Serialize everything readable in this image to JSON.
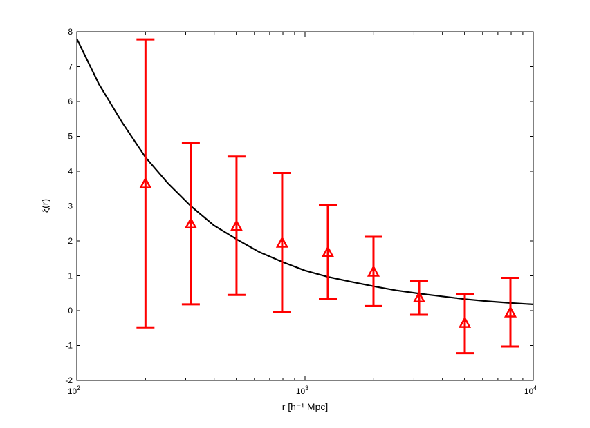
{
  "chart_data": {
    "type": "scatter",
    "x_scale": "log",
    "xlim": [
      100,
      10000
    ],
    "ylim": [
      -2,
      8
    ],
    "grid": false,
    "xlabel": "r  [h⁻¹ Mpc]",
    "ylabel": "ξ(r)",
    "x_ticks": [
      {
        "value": 100,
        "base": "10",
        "exp": "2"
      },
      {
        "value": 1000,
        "base": "10",
        "exp": "3"
      },
      {
        "value": 10000,
        "base": "10",
        "exp": "4"
      }
    ],
    "y_ticks": [
      -2,
      -1,
      0,
      1,
      2,
      3,
      4,
      5,
      6,
      7,
      8
    ],
    "series": [
      {
        "kind": "errorbar",
        "marker": "triangle",
        "color": "#ff0000",
        "x": [
          200,
          316,
          501,
          794,
          1259,
          1995,
          3162,
          5012,
          7943
        ],
        "y": [
          3.65,
          2.5,
          2.43,
          1.95,
          1.68,
          1.12,
          0.38,
          -0.35,
          -0.05
        ],
        "y_low": [
          -0.48,
          0.18,
          0.45,
          -0.05,
          0.33,
          0.13,
          -0.12,
          -1.22,
          -1.03
        ],
        "y_high": [
          7.78,
          4.82,
          4.42,
          3.95,
          3.04,
          2.12,
          0.86,
          0.47,
          0.94
        ]
      },
      {
        "kind": "curve",
        "color": "#000000",
        "x": [
          100,
          125,
          158,
          200,
          251,
          316,
          398,
          501,
          631,
          794,
          1000,
          1259,
          1585,
          1995,
          2512,
          3162,
          3981,
          5012,
          6310,
          7943,
          10000
        ],
        "y": [
          7.8,
          6.5,
          5.4,
          4.4,
          3.65,
          3.0,
          2.45,
          2.05,
          1.68,
          1.4,
          1.15,
          0.97,
          0.83,
          0.7,
          0.58,
          0.49,
          0.41,
          0.33,
          0.27,
          0.22,
          0.18
        ]
      }
    ]
  }
}
